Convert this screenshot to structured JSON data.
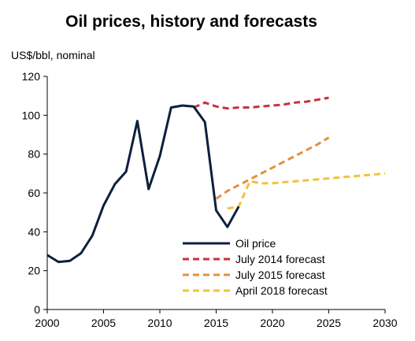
{
  "chart_data": {
    "type": "line",
    "title": "Oil prices, history and forecasts",
    "ylabel": "US$/bbl, nominal",
    "xlabel": "",
    "xlim": [
      2000,
      2030
    ],
    "ylim": [
      0,
      120
    ],
    "x_ticks": [
      2000,
      2005,
      2010,
      2015,
      2020,
      2025,
      2030
    ],
    "y_ticks": [
      0,
      20,
      40,
      60,
      80,
      100,
      120
    ],
    "grid": false,
    "legend_position": "bottom-center",
    "series": [
      {
        "name": "Oil price",
        "color": "#0d1f3c",
        "dash": "solid",
        "x": [
          2000,
          2001,
          2002,
          2003,
          2004,
          2005,
          2006,
          2007,
          2008,
          2009,
          2010,
          2011,
          2012,
          2013,
          2014,
          2015,
          2016,
          2017
        ],
        "y": [
          28,
          24.5,
          25,
          29,
          38,
          53.5,
          64.5,
          71,
          97,
          62,
          79,
          104,
          105,
          104.5,
          96.5,
          51,
          42.5,
          53
        ]
      },
      {
        "name": "July 2014 forecast",
        "color": "#c9303e",
        "dash": "dashed",
        "x": [
          2013,
          2014,
          2015,
          2016,
          2017,
          2018,
          2019,
          2020,
          2021,
          2022,
          2023,
          2024,
          2025
        ],
        "y": [
          104,
          106.5,
          104.5,
          103.5,
          104,
          104,
          104.5,
          105,
          105.5,
          106.5,
          107,
          108,
          109
        ]
      },
      {
        "name": "July 2015 forecast",
        "color": "#e3913b",
        "dash": "dashed",
        "x": [
          2015,
          2016,
          2017,
          2018,
          2019,
          2020,
          2021,
          2022,
          2023,
          2024,
          2025
        ],
        "y": [
          57,
          61,
          64,
          67,
          70,
          73,
          76,
          79,
          82,
          85,
          88.5
        ]
      },
      {
        "name": "April 2018 forecast",
        "color": "#f2c23a",
        "dash": "dashed",
        "x": [
          2016,
          2017,
          2018,
          2019,
          2020,
          2021,
          2022,
          2023,
          2024,
          2025,
          2026,
          2027,
          2028,
          2029,
          2030
        ],
        "y": [
          52,
          53,
          66,
          65,
          65,
          65.5,
          66,
          66.5,
          67,
          67.5,
          68,
          68.5,
          69,
          69.5,
          70
        ]
      }
    ]
  }
}
